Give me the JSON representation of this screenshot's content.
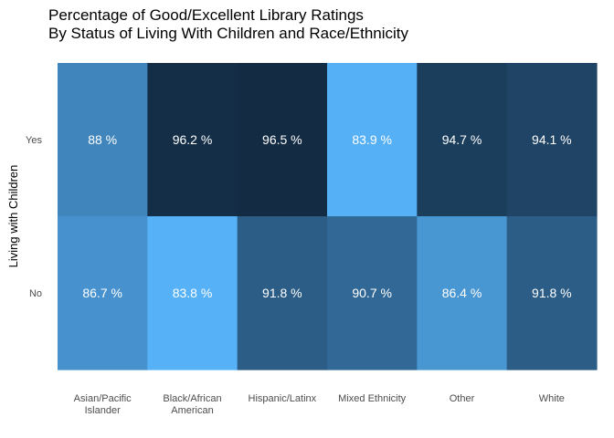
{
  "chart_data": {
    "type": "heatmap",
    "title": [
      "Percentage of Good/Excellent Library Ratings",
      "By Status of Living With Children and Race/Ethnicity"
    ],
    "xlabel": "",
    "ylabel": "Living with Children",
    "x_categories": [
      [
        "Asian/Pacific",
        "Islander"
      ],
      [
        "Black/African",
        "American"
      ],
      [
        "Hispanic/Latinx"
      ],
      [
        "Mixed Ethnicity"
      ],
      [
        "Other"
      ],
      [
        "White"
      ]
    ],
    "y_categories": [
      "Yes",
      "No"
    ],
    "values": [
      [
        88,
        96.2,
        96.5,
        83.9,
        94.7,
        94.1
      ],
      [
        86.7,
        83.8,
        91.8,
        90.7,
        86.4,
        91.8
      ]
    ],
    "value_labels": [
      [
        "88 %",
        "96.2 %",
        "96.5 %",
        "83.9 %",
        "94.7 %",
        "94.1 %"
      ],
      [
        "86.7 %",
        "83.8 %",
        "91.8 %",
        "90.7 %",
        "86.4 %",
        "91.8 %"
      ]
    ],
    "color_scale": {
      "low": "#56b1f7",
      "high": "#132b43",
      "min": 83.8,
      "max": 96.5
    },
    "legend": "none",
    "grid": false
  }
}
